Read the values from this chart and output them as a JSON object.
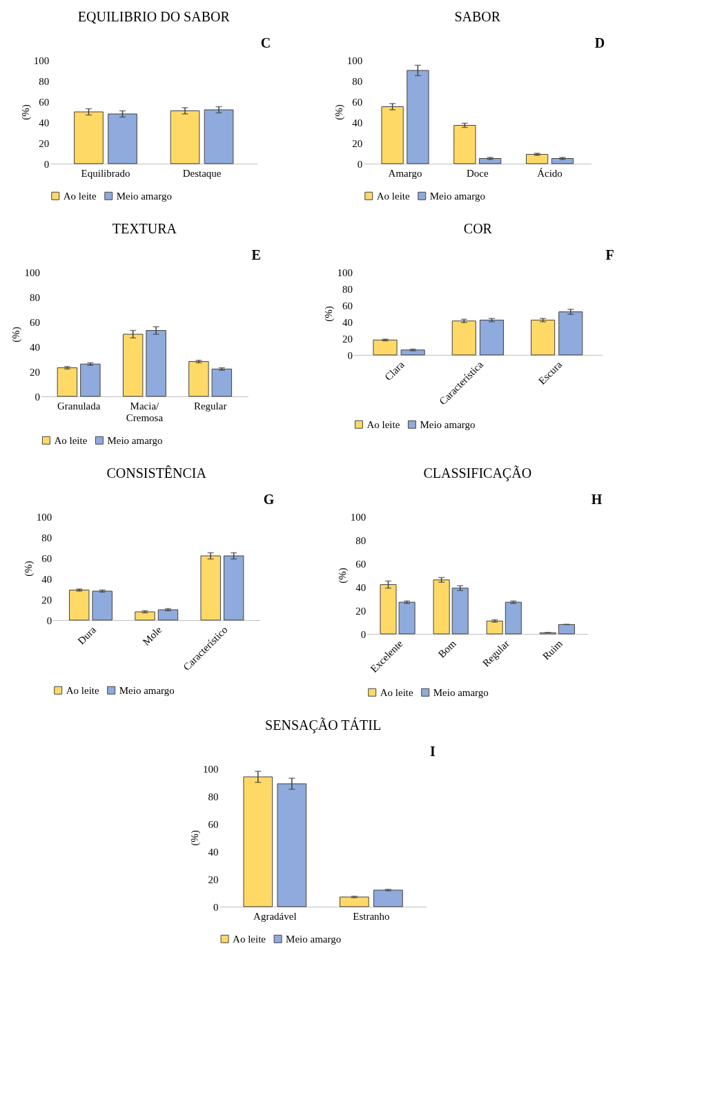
{
  "chart_data": [
    {
      "type": "bar",
      "title": "EQUILIBRIO DO SABOR",
      "annotations": [
        "C"
      ],
      "ylabel": "(%)",
      "categories": [
        "Equilibrado",
        "Destaque"
      ],
      "ylim": [
        0,
        100
      ],
      "yticks": [
        0,
        20,
        40,
        60,
        80,
        100
      ],
      "grid": false,
      "legend": "bottom",
      "series": [
        {
          "name": "Ao leite",
          "color": "#ffd966",
          "values": [
            50,
            51
          ],
          "errors": [
            3,
            3
          ]
        },
        {
          "name": "Meio amargo",
          "color": "#8faadc",
          "values": [
            48,
            52
          ],
          "errors": [
            3,
            3
          ]
        }
      ]
    },
    {
      "type": "bar",
      "title": "SABOR",
      "annotations": [
        "D"
      ],
      "ylabel": "(%)",
      "categories": [
        "Amargo",
        "Doce",
        "Ácido"
      ],
      "ylim": [
        0,
        100
      ],
      "yticks": [
        0,
        20,
        40,
        60,
        80,
        100
      ],
      "grid": false,
      "legend": "bottom",
      "series": [
        {
          "name": "Ao leite",
          "color": "#ffd966",
          "values": [
            55,
            37,
            9
          ],
          "errors": [
            3,
            2,
            1
          ]
        },
        {
          "name": "Meio amargo",
          "color": "#8faadc",
          "values": [
            90,
            5,
            5
          ],
          "errors": [
            5,
            1,
            1
          ]
        }
      ]
    },
    {
      "type": "bar",
      "title": "TEXTURA",
      "annotations": [
        "E"
      ],
      "ylabel": "(%)",
      "categories": [
        "Granulada",
        "Macia/\nCremosa",
        "Regular"
      ],
      "ylim": [
        0,
        100
      ],
      "yticks": [
        0,
        20,
        40,
        60,
        80,
        100
      ],
      "grid": false,
      "legend": "bottom",
      "series": [
        {
          "name": "Ao leite",
          "color": "#ffd966",
          "values": [
            23,
            50,
            28
          ],
          "errors": [
            1,
            3,
            1
          ]
        },
        {
          "name": "Meio amargo",
          "color": "#8faadc",
          "values": [
            26,
            53,
            22
          ],
          "errors": [
            1,
            3,
            1
          ]
        }
      ]
    },
    {
      "type": "bar",
      "title": "COR",
      "annotations": [
        "F"
      ],
      "ylabel": "(%)",
      "categories": [
        "Clara",
        "Característica",
        "Escura"
      ],
      "ylim": [
        0,
        100
      ],
      "yticks": [
        0,
        20,
        40,
        60,
        80,
        100
      ],
      "grid": false,
      "legend": "bottom",
      "series": [
        {
          "name": "Ao leite",
          "color": "#ffd966",
          "values": [
            18,
            41,
            42
          ],
          "errors": [
            1,
            2,
            2
          ]
        },
        {
          "name": "Meio amargo",
          "color": "#8faadc",
          "values": [
            6,
            42,
            52
          ],
          "errors": [
            1,
            2,
            3
          ]
        }
      ]
    },
    {
      "type": "bar",
      "title": "CONSISTÊNCIA",
      "annotations": [
        "G"
      ],
      "ylabel": "(%)",
      "categories": [
        "Dura",
        "Mole",
        "Característico"
      ],
      "ylim": [
        0,
        100
      ],
      "yticks": [
        0,
        20,
        40,
        60,
        80,
        100
      ],
      "grid": false,
      "legend": "bottom",
      "series": [
        {
          "name": "Ao leite",
          "color": "#ffd966",
          "values": [
            29,
            8,
            62
          ],
          "errors": [
            1,
            1,
            3
          ]
        },
        {
          "name": "Meio amargo",
          "color": "#8faadc",
          "values": [
            28,
            10,
            62
          ],
          "errors": [
            1,
            1,
            3
          ]
        }
      ]
    },
    {
      "type": "bar",
      "title": "CLASSIFICAÇÃO",
      "annotations": [
        "H"
      ],
      "ylabel": "(%)",
      "categories": [
        "Excelente",
        "Bom",
        "Regular",
        "Ruim"
      ],
      "ylim": [
        0,
        100
      ],
      "yticks": [
        0,
        20,
        40,
        60,
        80,
        100
      ],
      "grid": false,
      "legend": "bottom",
      "series": [
        {
          "name": "Ao leite",
          "color": "#ffd966",
          "values": [
            42,
            46,
            11,
            1
          ],
          "errors": [
            3,
            2,
            1,
            0
          ]
        },
        {
          "name": "Meio amargo",
          "color": "#8faadc",
          "values": [
            27,
            39,
            27,
            8
          ],
          "errors": [
            1,
            2,
            1,
            0
          ]
        }
      ]
    },
    {
      "type": "bar",
      "title": "SENSAÇÃO TÁTIL",
      "annotations": [
        "I"
      ],
      "ylabel": "(%)",
      "categories": [
        "Agradável",
        "Estranho"
      ],
      "ylim": [
        0,
        100
      ],
      "yticks": [
        0,
        20,
        40,
        60,
        80,
        100
      ],
      "grid": false,
      "legend": "bottom",
      "series": [
        {
          "name": "Ao leite",
          "color": "#ffd966",
          "values": [
            94,
            7
          ],
          "errors": [
            4,
            0.5
          ]
        },
        {
          "name": "Meio amargo",
          "color": "#8faadc",
          "values": [
            89,
            12
          ],
          "errors": [
            4,
            0.5
          ]
        }
      ]
    }
  ]
}
